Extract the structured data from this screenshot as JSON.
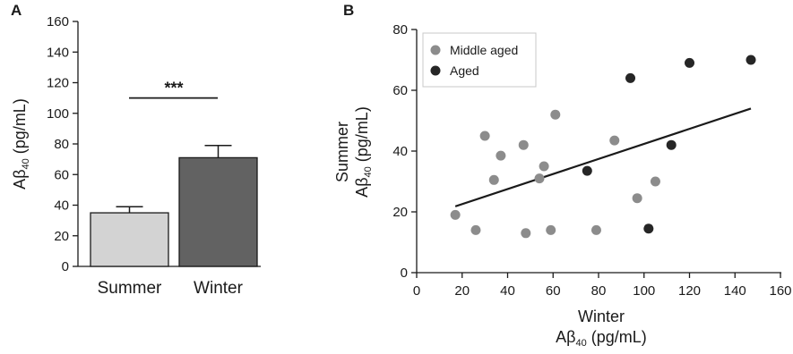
{
  "chart_data": [
    {
      "panel_label": "A",
      "type": "bar",
      "categories": [
        "Summer",
        "Winter"
      ],
      "values": [
        35,
        71
      ],
      "errors": [
        4,
        8
      ],
      "colors": [
        "#d3d3d3",
        "#626262"
      ],
      "ylabel": {
        "main": "Aβ",
        "sub": "40",
        "unit": " (pg/mL)"
      },
      "ylim": [
        0,
        160
      ],
      "yticks": [
        "0",
        "20",
        "40",
        "60",
        "80",
        "100",
        "120",
        "140",
        "160"
      ],
      "significance": "***",
      "significance_level": 110,
      "grid": false
    },
    {
      "panel_label": "B",
      "type": "scatter",
      "xlabel": {
        "line1": "Winter",
        "main": "Aβ",
        "sub": "40",
        "unit": " (pg/mL)"
      },
      "ylabel": {
        "line1": "Summer",
        "main": "Aβ",
        "sub": "40",
        "unit": " (pg/mL)"
      },
      "xlim": [
        0,
        160
      ],
      "ylim": [
        0,
        80
      ],
      "xticks": [
        "0",
        "20",
        "40",
        "60",
        "80",
        "100",
        "120",
        "140",
        "160"
      ],
      "yticks": [
        "0",
        "20",
        "40",
        "60",
        "80"
      ],
      "grid": false,
      "legend_position": "top-left",
      "series": [
        {
          "name": "Middle aged",
          "color": "#8c8c8c",
          "points": [
            [
              17,
              19
            ],
            [
              26,
              14
            ],
            [
              30,
              45
            ],
            [
              34,
              30.5
            ],
            [
              37,
              38.5
            ],
            [
              47,
              42
            ],
            [
              48,
              13
            ],
            [
              54,
              31
            ],
            [
              56,
              35
            ],
            [
              59,
              14
            ],
            [
              61,
              52
            ],
            [
              79,
              14
            ],
            [
              87,
              43.5
            ],
            [
              97,
              24.5
            ],
            [
              105,
              30
            ]
          ]
        },
        {
          "name": "Aged",
          "color": "#262626",
          "points": [
            [
              75,
              33.5
            ],
            [
              94,
              64
            ],
            [
              102,
              14.5
            ],
            [
              112,
              42
            ],
            [
              120,
              69
            ],
            [
              147,
              70
            ]
          ]
        }
      ],
      "trendline": {
        "x": [
          17,
          147
        ],
        "y": [
          21.8,
          54
        ]
      }
    }
  ]
}
